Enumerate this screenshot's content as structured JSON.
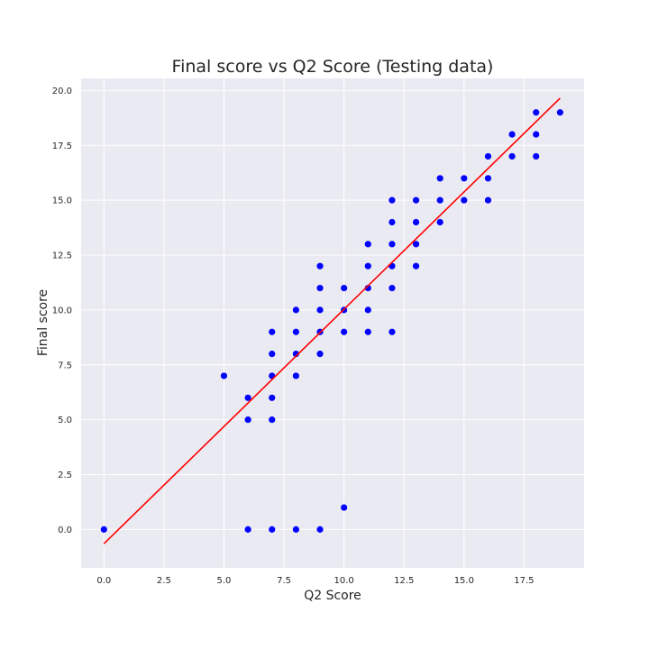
{
  "chart_data": {
    "type": "scatter",
    "title": "Final score vs Q2 Score (Testing data)",
    "xlabel": "Q2 Score",
    "ylabel": "Final score",
    "xlim": [
      -0.95,
      20.0
    ],
    "ylim": [
      -1.75,
      20.55
    ],
    "xticks": [
      0.0,
      2.5,
      5.0,
      7.5,
      10.0,
      12.5,
      15.0,
      17.5
    ],
    "yticks": [
      0.0,
      2.5,
      5.0,
      7.5,
      10.0,
      12.5,
      15.0,
      17.5,
      20.0
    ],
    "grid": true,
    "colors": {
      "background": "#eaeaf2",
      "grid": "#ffffff",
      "points": "#0000ff",
      "line": "#ff0000"
    },
    "series": [
      {
        "type": "scatter",
        "points": [
          [
            0,
            0
          ],
          [
            5,
            7
          ],
          [
            6,
            6
          ],
          [
            6,
            5
          ],
          [
            6,
            0
          ],
          [
            7,
            9
          ],
          [
            7,
            8
          ],
          [
            7,
            7
          ],
          [
            7,
            6
          ],
          [
            7,
            5
          ],
          [
            7,
            0
          ],
          [
            8,
            10
          ],
          [
            8,
            9
          ],
          [
            8,
            8
          ],
          [
            8,
            7
          ],
          [
            8,
            0
          ],
          [
            9,
            12
          ],
          [
            9,
            11
          ],
          [
            9,
            10
          ],
          [
            9,
            9
          ],
          [
            9,
            8
          ],
          [
            9,
            0
          ],
          [
            10,
            11
          ],
          [
            10,
            10
          ],
          [
            10,
            9
          ],
          [
            10,
            1
          ],
          [
            11,
            13
          ],
          [
            11,
            12
          ],
          [
            11,
            11
          ],
          [
            11,
            10
          ],
          [
            11,
            9
          ],
          [
            12,
            15
          ],
          [
            12,
            14
          ],
          [
            12,
            13
          ],
          [
            12,
            12
          ],
          [
            12,
            11
          ],
          [
            12,
            9
          ],
          [
            13,
            15
          ],
          [
            13,
            14
          ],
          [
            13,
            13
          ],
          [
            13,
            12
          ],
          [
            14,
            16
          ],
          [
            14,
            15
          ],
          [
            14,
            14
          ],
          [
            15,
            16
          ],
          [
            15,
            15
          ],
          [
            16,
            17
          ],
          [
            16,
            16
          ],
          [
            16,
            15
          ],
          [
            17,
            18
          ],
          [
            17,
            17
          ],
          [
            18,
            19
          ],
          [
            18,
            18
          ],
          [
            18,
            17
          ],
          [
            19,
            19
          ]
        ]
      },
      {
        "type": "line",
        "points": [
          [
            0,
            -0.65
          ],
          [
            19,
            19.65
          ]
        ]
      }
    ]
  }
}
